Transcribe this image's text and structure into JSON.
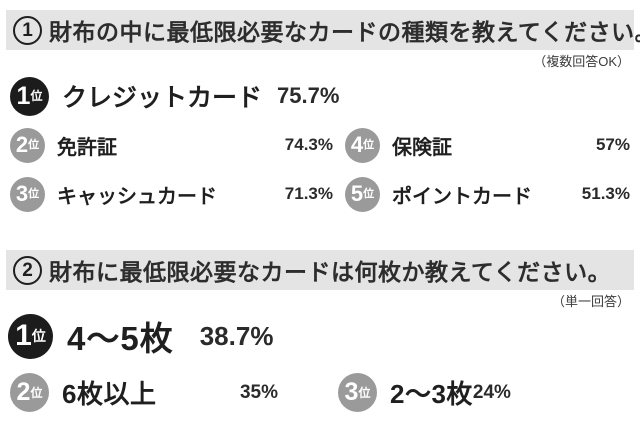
{
  "colors": {
    "page_bg": "#ffffff",
    "header_bg": "#e4e4e4",
    "text": "#262626",
    "badge_black": "#1c1c1c",
    "badge_gray": "#9a9a9a",
    "badge_text": "#ffffff",
    "note_color": "#3c3c3c"
  },
  "questions": [
    {
      "number": "1",
      "title": "財布の中に最低限必要なカードの種類を教えてください。",
      "note": "（複数回答OK）",
      "top_answer": {
        "rank": "1",
        "rank_suffix": "位",
        "label": "クレジットカード",
        "value": "75.7%"
      },
      "answers_left": [
        {
          "rank": "2",
          "rank_suffix": "位",
          "label": "免許証",
          "value": "74.3%"
        },
        {
          "rank": "3",
          "rank_suffix": "位",
          "label": "キャッシュカード",
          "value": "71.3%"
        }
      ],
      "answers_right": [
        {
          "rank": "4",
          "rank_suffix": "位",
          "label": "保険証",
          "value": "57%"
        },
        {
          "rank": "5",
          "rank_suffix": "位",
          "label": "ポイントカード",
          "value": "51.3%"
        }
      ]
    },
    {
      "number": "2",
      "title": "財布に最低限必要なカードは何枚か教えてください。",
      "note": "（単一回答）",
      "top_answer": {
        "rank": "1",
        "rank_suffix": "位",
        "label": "4～5枚",
        "value": "38.7%"
      },
      "answers_row": [
        {
          "rank": "2",
          "rank_suffix": "位",
          "label": "6枚以上",
          "value": "35%"
        },
        {
          "rank": "3",
          "rank_suffix": "位",
          "label": "2～3枚",
          "value": "24%"
        }
      ]
    }
  ],
  "chart_data": [
    {
      "type": "table",
      "title": "①財布の中に最低限必要なカードの種類を教えてください。",
      "subtitle": "（複数回答OK）",
      "categories": [
        "クレジットカード",
        "免許証",
        "キャッシュカード",
        "保険証",
        "ポイントカード"
      ],
      "values": [
        75.7,
        74.3,
        71.3,
        57,
        51.3
      ],
      "ranks": [
        1,
        2,
        3,
        4,
        5
      ],
      "unit": "%"
    },
    {
      "type": "table",
      "title": "②財布に最低限必要なカードは何枚か教えてください。",
      "subtitle": "（単一回答）",
      "categories": [
        "4～5枚",
        "6枚以上",
        "2～3枚"
      ],
      "values": [
        38.7,
        35,
        24
      ],
      "ranks": [
        1,
        2,
        3
      ],
      "unit": "%"
    }
  ]
}
